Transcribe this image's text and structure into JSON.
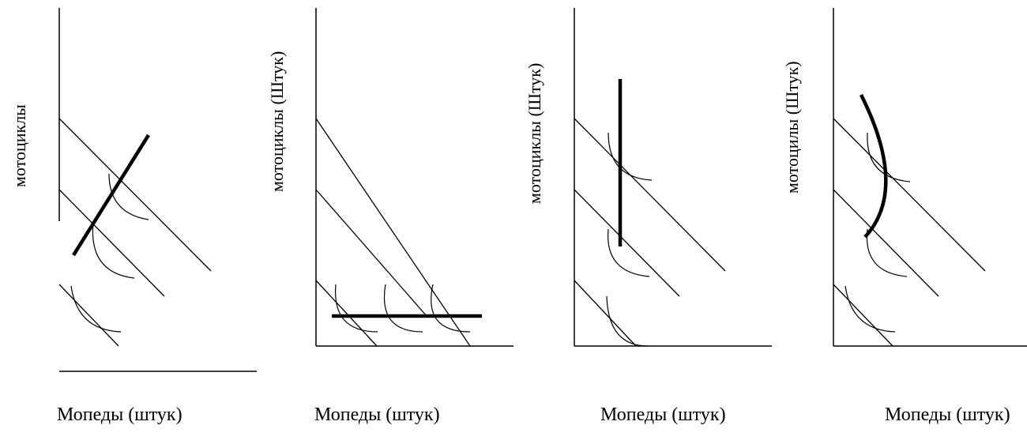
{
  "panels": [
    {
      "y_label": "мотоциклы",
      "x_label": "Мопеды (штук)"
    },
    {
      "y_label": "мотоциклы (Штук)",
      "x_label": "Мопеды (штук)"
    },
    {
      "y_label": "мотоциклы  (Штук)",
      "x_label": "Мопеды (штук)"
    },
    {
      "y_label": "мотоцилы (Штук)",
      "x_label": "Мопеды (штук)"
    }
  ]
}
